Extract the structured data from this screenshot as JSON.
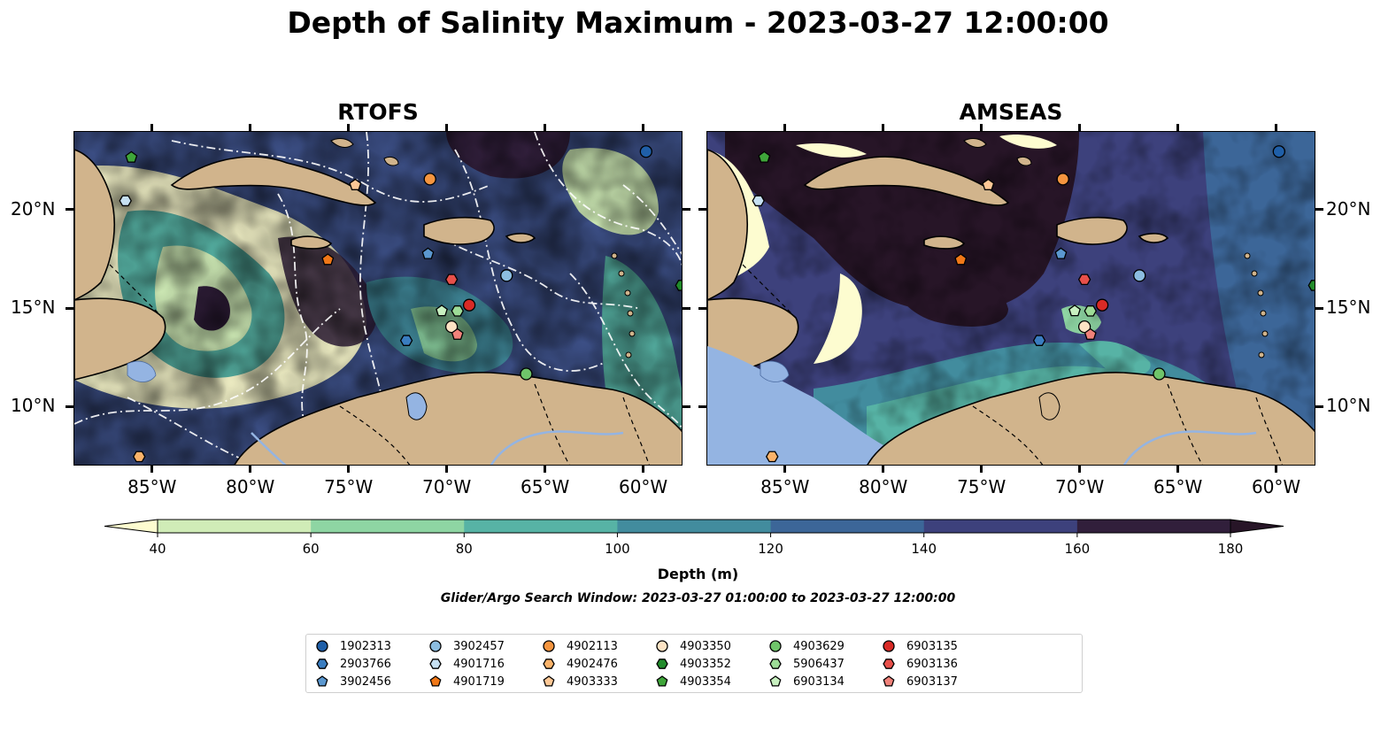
{
  "title": "Depth of Salinity Maximum - 2023-03-27 12:00:00",
  "panels": [
    {
      "name": "RTOFS"
    },
    {
      "name": "AMSEAS"
    }
  ],
  "lat_labels": [
    "20°N",
    "15°N",
    "10°N"
  ],
  "lon_labels": [
    "85°W",
    "80°W",
    "75°W",
    "70°W",
    "65°W",
    "60°W"
  ],
  "map_extent": {
    "lon": [
      -89,
      -58
    ],
    "lat": [
      7,
      24
    ]
  },
  "colorbar": {
    "label": "Depth (m)",
    "ticks": [
      "40",
      "60",
      "80",
      "100",
      "120",
      "140",
      "160",
      "180"
    ],
    "colors": [
      "#fdfcd0",
      "#d0ecb7",
      "#8ed5a3",
      "#57b3a5",
      "#428c9e",
      "#3c6698",
      "#3d417c",
      "#311f3b",
      "#271527"
    ],
    "extend": "both"
  },
  "search_window": "Glider/Argo Search Window: 2023-03-27 01:00:00 to 2023-03-27 12:00:00",
  "colors": {
    "land": "#d1b48c",
    "water": "#94b4e2"
  },
  "floats": [
    {
      "id": "1902313",
      "marker": "circle",
      "color": "#1f5fa8",
      "lon": -59.9,
      "lat": 23.0
    },
    {
      "id": "2903766",
      "marker": "hexagon",
      "color": "#3a7dc0",
      "lon": -72.1,
      "lat": 13.4
    },
    {
      "id": "3902456",
      "marker": "pentagon",
      "color": "#5b98d0",
      "lon": -71.0,
      "lat": 17.8
    },
    {
      "id": "3902457",
      "marker": "circle",
      "color": "#8cbde0",
      "lon": -67.0,
      "lat": 16.7
    },
    {
      "id": "4901716",
      "marker": "hexagon",
      "color": "#c6e0f2",
      "lon": -86.4,
      "lat": 20.5
    },
    {
      "id": "4901719",
      "marker": "pentagon",
      "color": "#f07818",
      "lon": -76.1,
      "lat": 17.5
    },
    {
      "id": "4902113",
      "marker": "circle",
      "color": "#f5953f",
      "lon": -70.9,
      "lat": 21.6
    },
    {
      "id": "4902476",
      "marker": "hexagon",
      "color": "#fbb36a",
      "lon": -85.7,
      "lat": 7.5
    },
    {
      "id": "4903333",
      "marker": "pentagon",
      "color": "#fdc896",
      "lon": -74.7,
      "lat": 21.3
    },
    {
      "id": "4903350",
      "marker": "circle",
      "color": "#fde3c4",
      "lon": -69.8,
      "lat": 14.1
    },
    {
      "id": "4903352",
      "marker": "hexagon",
      "color": "#218b2b",
      "lon": -58.1,
      "lat": 16.2
    },
    {
      "id": "4903354",
      "marker": "pentagon",
      "color": "#3fa63a",
      "lon": -86.1,
      "lat": 22.7
    },
    {
      "id": "4903629",
      "marker": "circle",
      "color": "#6fc46a",
      "lon": -66.0,
      "lat": 11.7
    },
    {
      "id": "5906437",
      "marker": "hexagon",
      "color": "#9ddc97",
      "lon": -69.5,
      "lat": 14.9
    },
    {
      "id": "6903134",
      "marker": "pentagon",
      "color": "#c8f0c0",
      "lon": -70.3,
      "lat": 14.9
    },
    {
      "id": "6903135",
      "marker": "circle",
      "color": "#d92a26",
      "lon": -68.9,
      "lat": 15.2
    },
    {
      "id": "6903136",
      "marker": "hexagon",
      "color": "#e8504a",
      "lon": -69.8,
      "lat": 16.5
    },
    {
      "id": "6903137",
      "marker": "pentagon",
      "color": "#f0827a",
      "lon": -69.5,
      "lat": 13.7
    }
  ]
}
